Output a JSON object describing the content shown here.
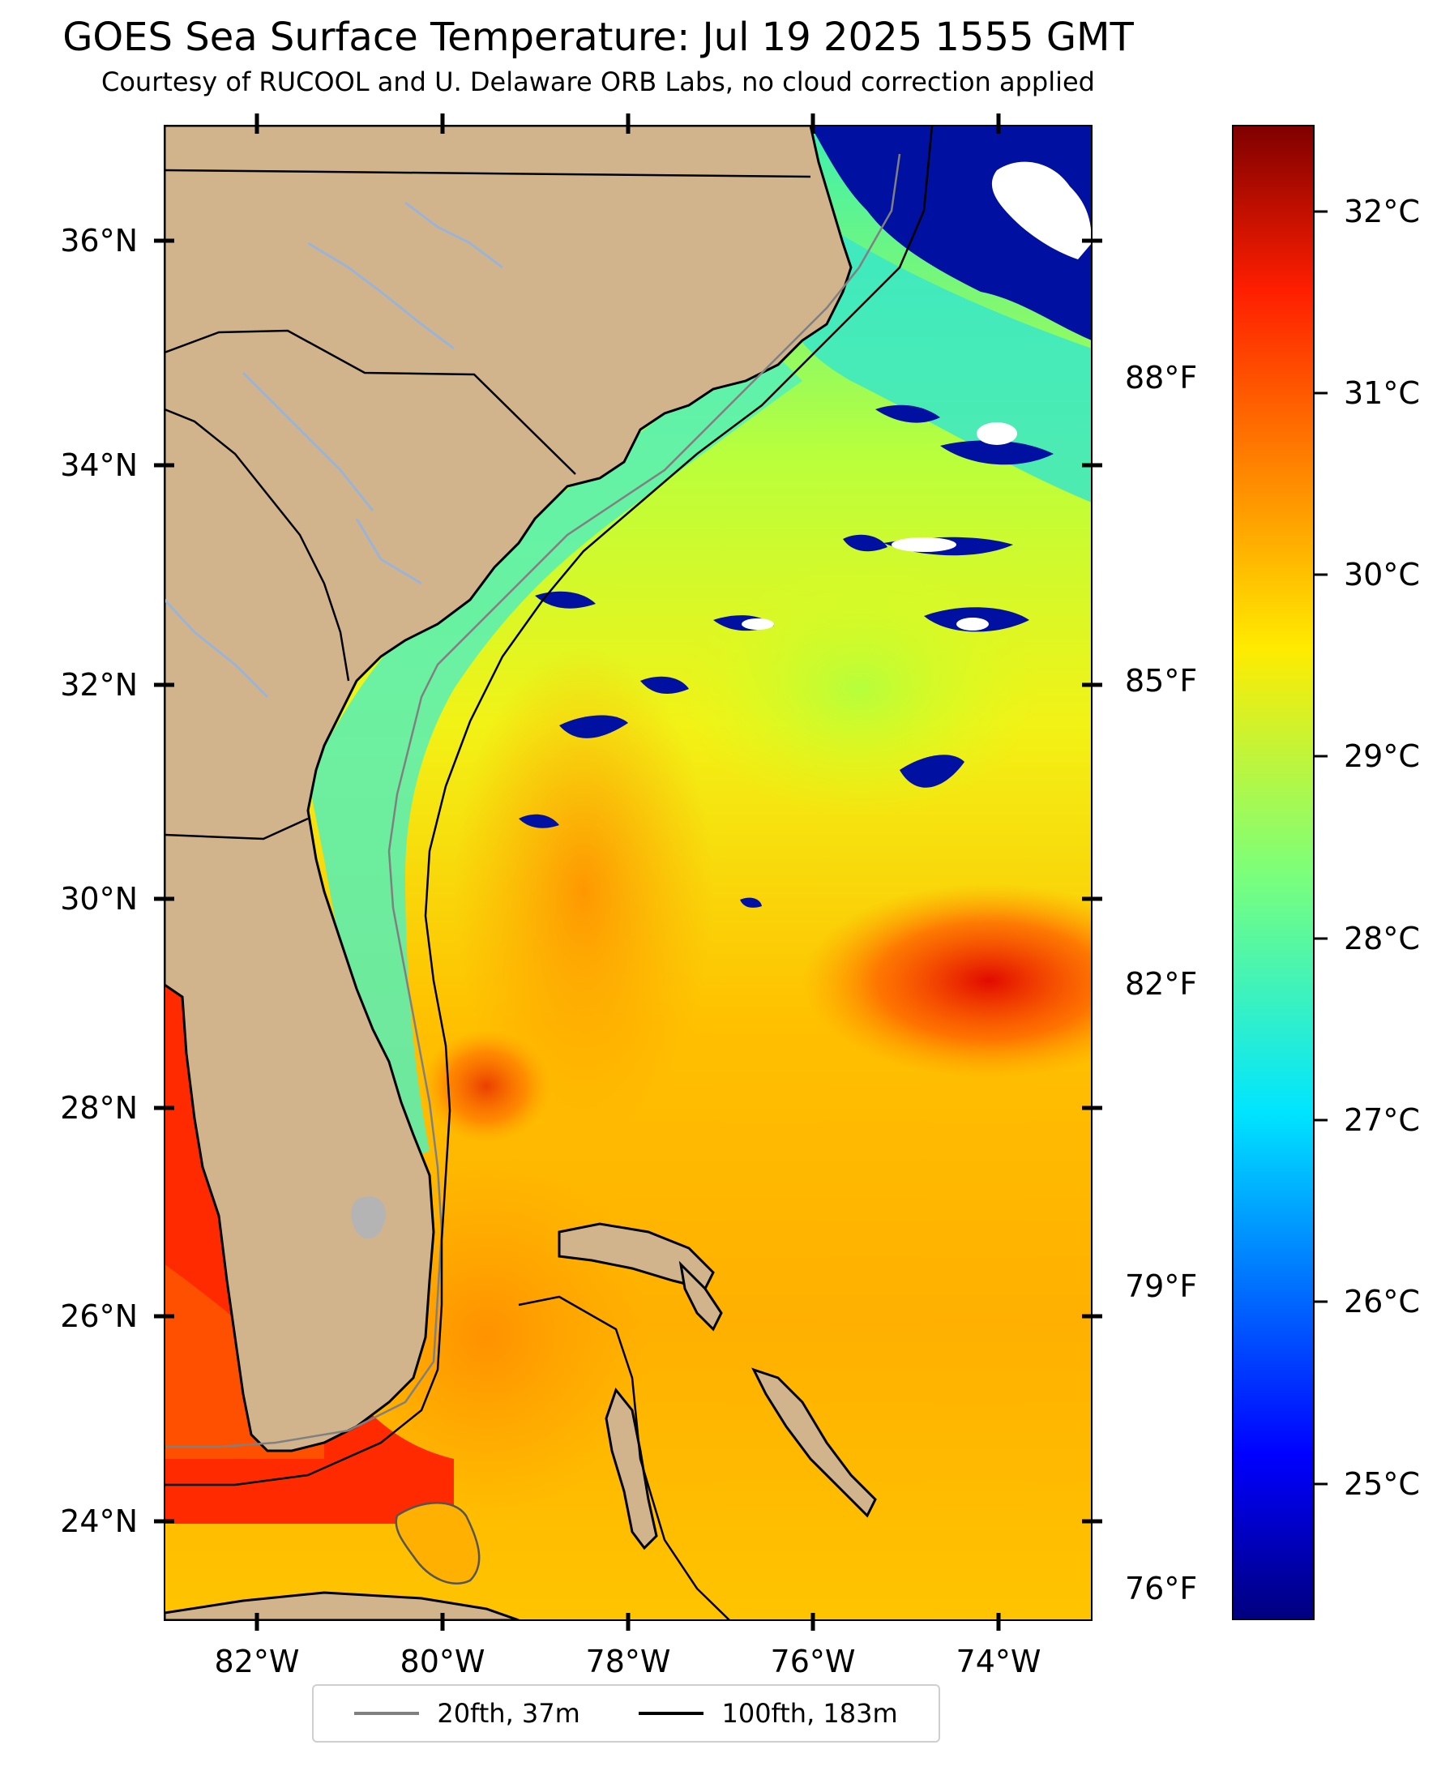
{
  "title": "GOES Sea Surface Temperature: Jul 19 2025 1555 GMT",
  "subtitle": "Courtesy of RUCOOL and U. Delaware ORB Labs, no cloud correction applied",
  "map": {
    "extent": {
      "lon_min": -83,
      "lon_max": -73,
      "lat_min": 23,
      "lat_max": 37
    },
    "lat_labels": [
      "24°N",
      "26°N",
      "28°N",
      "30°N",
      "32°N",
      "34°N",
      "36°N"
    ],
    "lon_labels": [
      "82°W",
      "80°W",
      "78°W",
      "76°W",
      "74°W"
    ],
    "fahrenheit_labels": [
      "76°F",
      "79°F",
      "82°F",
      "85°F",
      "88°F"
    ],
    "land_color": "#d2b48c",
    "cloud_color": "#ffffff"
  },
  "colorbar": {
    "colormap": "jet",
    "range_c": [
      24.4,
      32.6
    ],
    "labels": [
      "25°C",
      "26°C",
      "27°C",
      "28°C",
      "29°C",
      "30°C",
      "31°C",
      "32°C"
    ]
  },
  "legend": {
    "items": [
      {
        "label": "20fth, 37m",
        "color": "#808080"
      },
      {
        "label": "100fth, 183m",
        "color": "#000000"
      }
    ]
  }
}
